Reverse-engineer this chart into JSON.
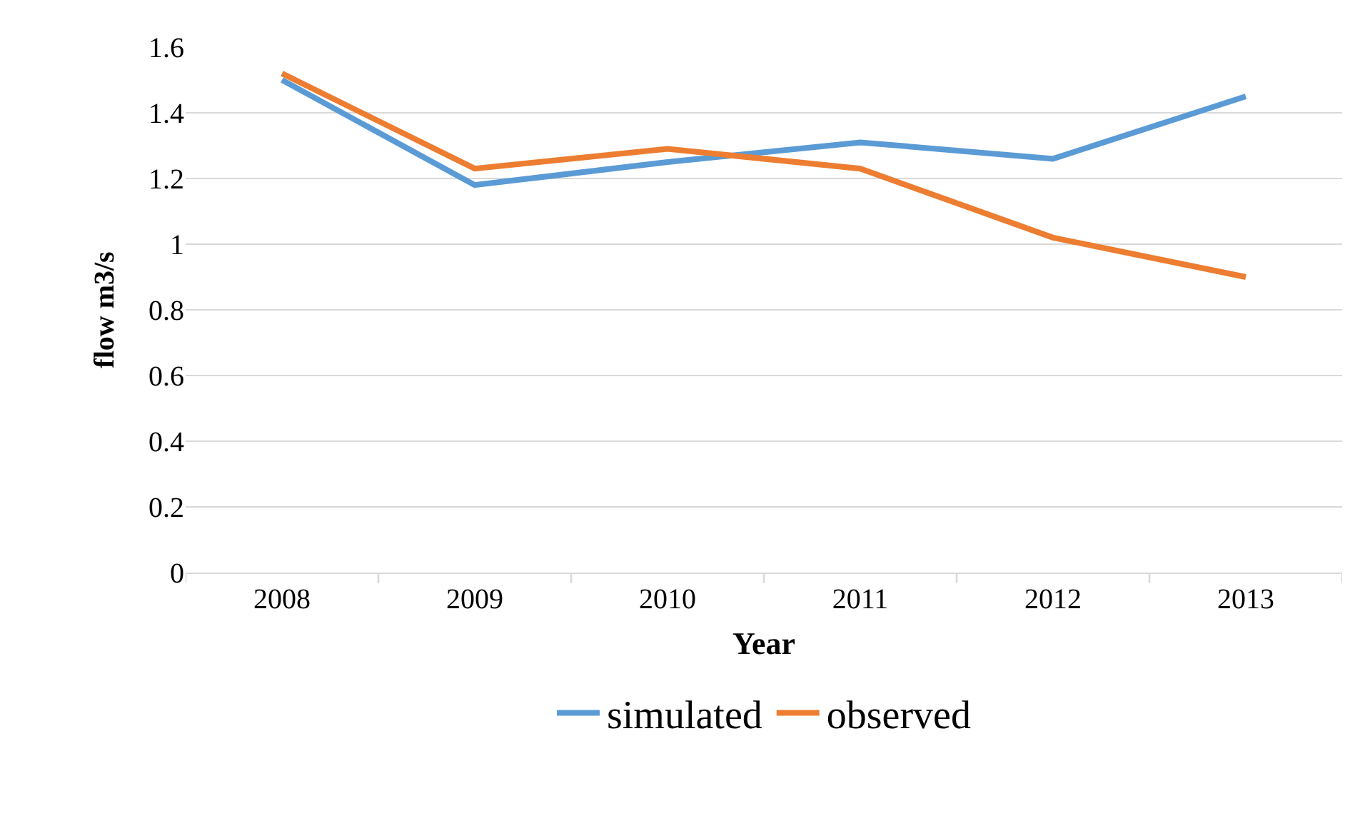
{
  "chart_data": {
    "type": "line",
    "xlabel": "Year",
    "ylabel": "flow m3/s",
    "categories": [
      "2008",
      "2009",
      "2010",
      "2011",
      "2012",
      "2013"
    ],
    "series": [
      {
        "name": "simulated",
        "color": "#5b9bd5",
        "values": [
          1.5,
          1.18,
          1.25,
          1.31,
          1.26,
          1.45
        ]
      },
      {
        "name": "observed",
        "color": "#ed7d31",
        "values": [
          1.52,
          1.23,
          1.29,
          1.23,
          1.02,
          0.9
        ]
      }
    ],
    "ylim": [
      0,
      1.6
    ],
    "yticks": [
      0,
      0.2,
      0.4,
      0.6,
      0.8,
      1,
      1.2,
      1.4,
      1.6
    ],
    "grid": "y",
    "legend": "bottom",
    "marker": "none",
    "line_style": "solid"
  }
}
